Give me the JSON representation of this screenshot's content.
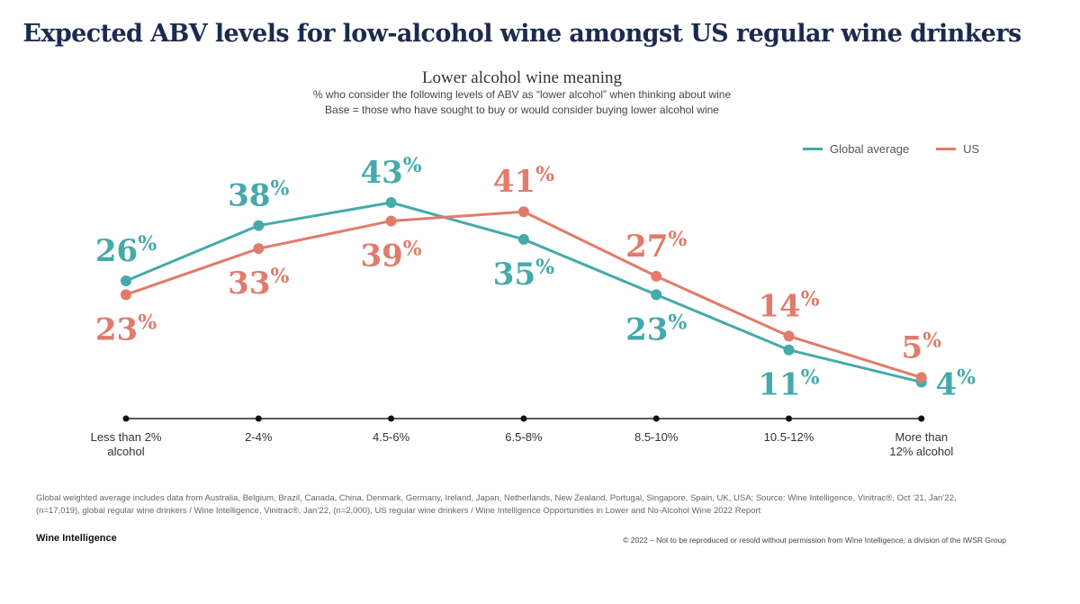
{
  "header": {
    "title": "Expected ABV levels for low-alcohol wine amongst US regular wine drinkers"
  },
  "chart_data": {
    "type": "line",
    "title": "Lower alcohol wine meaning",
    "subtitle_1": "% who consider the following levels of ABV as “lower alcohol” when thinking about wine",
    "subtitle_2": "Base = those who have sought to buy or would consider buying lower alcohol wine",
    "categories": [
      "Less than 2% alcohol",
      "2-4%",
      "4.5-6%",
      "6.5-8%",
      "8.5-10%",
      "10.5-12%",
      "More than 12% alcohol"
    ],
    "category_lines": [
      [
        "Less than 2%",
        "alcohol"
      ],
      [
        "2-4%"
      ],
      [
        "4.5-6%"
      ],
      [
        "6.5-8%"
      ],
      [
        "8.5-10%"
      ],
      [
        "10.5-12%"
      ],
      [
        "More than",
        "12% alcohol"
      ]
    ],
    "ylim": [
      0,
      50
    ],
    "legend_position": "top-right",
    "series": [
      {
        "name": "Global average",
        "color": "#45aaaa",
        "values": [
          26,
          38,
          43,
          35,
          23,
          11,
          4
        ],
        "label_sides": [
          "above",
          "above",
          "above",
          "below",
          "below",
          "below",
          "right"
        ]
      },
      {
        "name": "US",
        "color": "#e17b6b",
        "values": [
          23,
          33,
          39,
          41,
          27,
          14,
          5
        ],
        "label_sides": [
          "below",
          "below",
          "below",
          "above",
          "above",
          "above",
          "above"
        ]
      }
    ],
    "value_suffix": "%"
  },
  "footer": {
    "note_line1": "Global weighted average includes data from Australia, Belgium, Brazil, Canada, China, Denmark, Germany, Ireland, Japan, Netherlands, New Zealand, Portugal, Singapore, Spain, UK, USA; Source: Wine Intelligence, Vinitrac®, Oct ’21, Jan’22,",
    "note_line2": "(n=17,019), global regular wine drinkers / Wine Intelligence, Vinitrac®, Jan’22, (n=2,000), US regular wine drinkers / Wine Intelligence Opportunities in Lower and No-Alcohol Wine 2022 Report",
    "brand": "Wine Intelligence",
    "copyright": "© 2022 – Not to be reproduced or resold without permission from Wine Intelligence, a division of the IWSR Group"
  }
}
